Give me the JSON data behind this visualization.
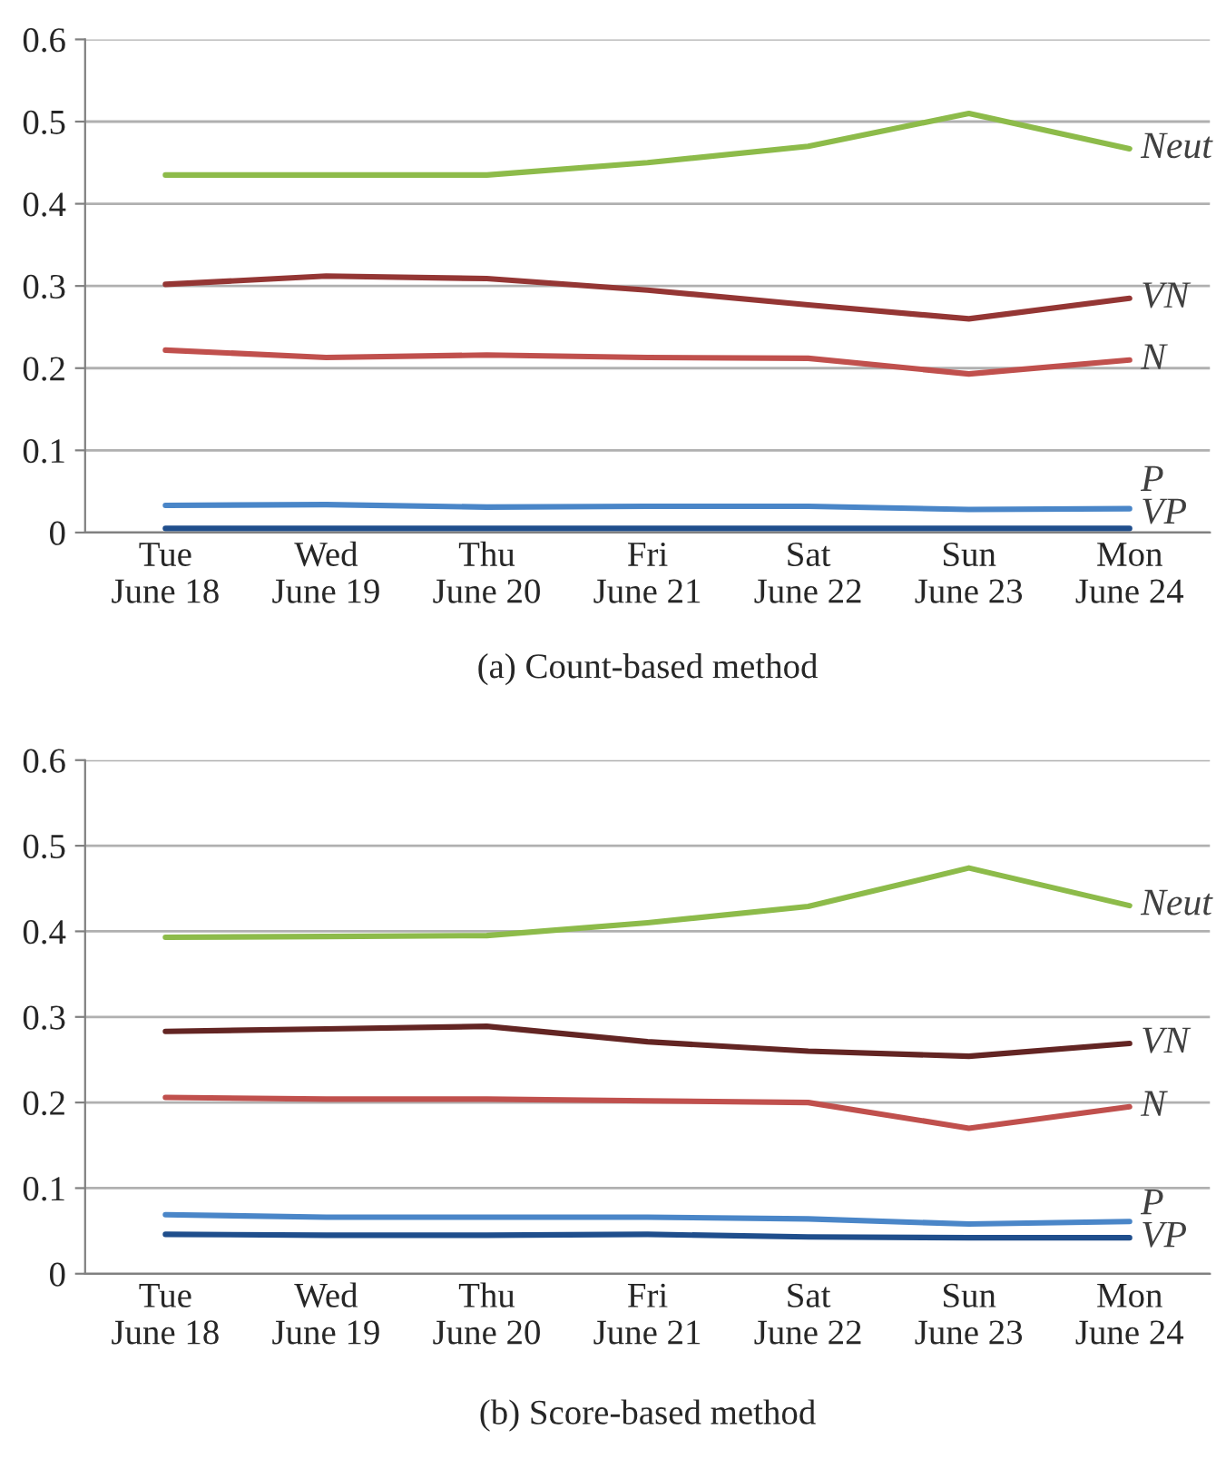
{
  "chart_data": [
    {
      "type": "line",
      "title": "(a) Count-based method",
      "categories": [
        "Tue\nJune 18",
        "Wed\nJune 19",
        "Thu\nJune 20",
        "Fri\nJune 21",
        "Sat\nJune 22",
        "Sun\nJune 23",
        "Mon\nJune 24"
      ],
      "ylim": [
        0,
        0.6
      ],
      "yticks": [
        0,
        0.1,
        0.2,
        0.3,
        0.4,
        0.5,
        0.6
      ],
      "grid": "y",
      "legend": false,
      "marker": "none",
      "line_style": "solid",
      "series": [
        {
          "name": "Neut",
          "color": "#8dbb4a",
          "values": [
            0.435,
            0.435,
            0.435,
            0.45,
            0.47,
            0.51,
            0.467
          ]
        },
        {
          "name": "VN",
          "color": "#943634",
          "values": [
            0.302,
            0.312,
            0.309,
            0.295,
            0.277,
            0.26,
            0.285
          ]
        },
        {
          "name": "N",
          "color": "#c0504d",
          "values": [
            0.222,
            0.213,
            0.216,
            0.213,
            0.212,
            0.193,
            0.21
          ]
        },
        {
          "name": "P",
          "color": "#4a86c8",
          "values": [
            0.033,
            0.034,
            0.031,
            0.032,
            0.032,
            0.028,
            0.029
          ]
        },
        {
          "name": "VP",
          "color": "#1f4e8c",
          "values": [
            0.005,
            0.005,
            0.005,
            0.005,
            0.005,
            0.005,
            0.005
          ]
        }
      ]
    },
    {
      "type": "line",
      "title": "(b) Score-based method",
      "categories": [
        "Tue\nJune 18",
        "Wed\nJune 19",
        "Thu\nJune 20",
        "Fri\nJune 21",
        "Sat\nJune 22",
        "Sun\nJune 23",
        "Mon\nJune 24"
      ],
      "ylim": [
        0,
        0.6
      ],
      "yticks": [
        0,
        0.1,
        0.2,
        0.3,
        0.4,
        0.5,
        0.6
      ],
      "grid": "y",
      "legend": false,
      "marker": "none",
      "line_style": "solid",
      "series": [
        {
          "name": "Neut",
          "color": "#8dbb4a",
          "values": [
            0.393,
            0.394,
            0.395,
            0.41,
            0.429,
            0.474,
            0.43
          ]
        },
        {
          "name": "VN",
          "color": "#632523",
          "values": [
            0.283,
            0.286,
            0.289,
            0.271,
            0.26,
            0.254,
            0.269
          ]
        },
        {
          "name": "N",
          "color": "#c0504d",
          "values": [
            0.206,
            0.204,
            0.204,
            0.202,
            0.2,
            0.17,
            0.195
          ]
        },
        {
          "name": "P",
          "color": "#4a86c8",
          "values": [
            0.069,
            0.066,
            0.066,
            0.066,
            0.064,
            0.058,
            0.061
          ]
        },
        {
          "name": "VP",
          "color": "#1f4e8c",
          "values": [
            0.046,
            0.045,
            0.045,
            0.046,
            0.043,
            0.042,
            0.042
          ]
        }
      ]
    }
  ]
}
